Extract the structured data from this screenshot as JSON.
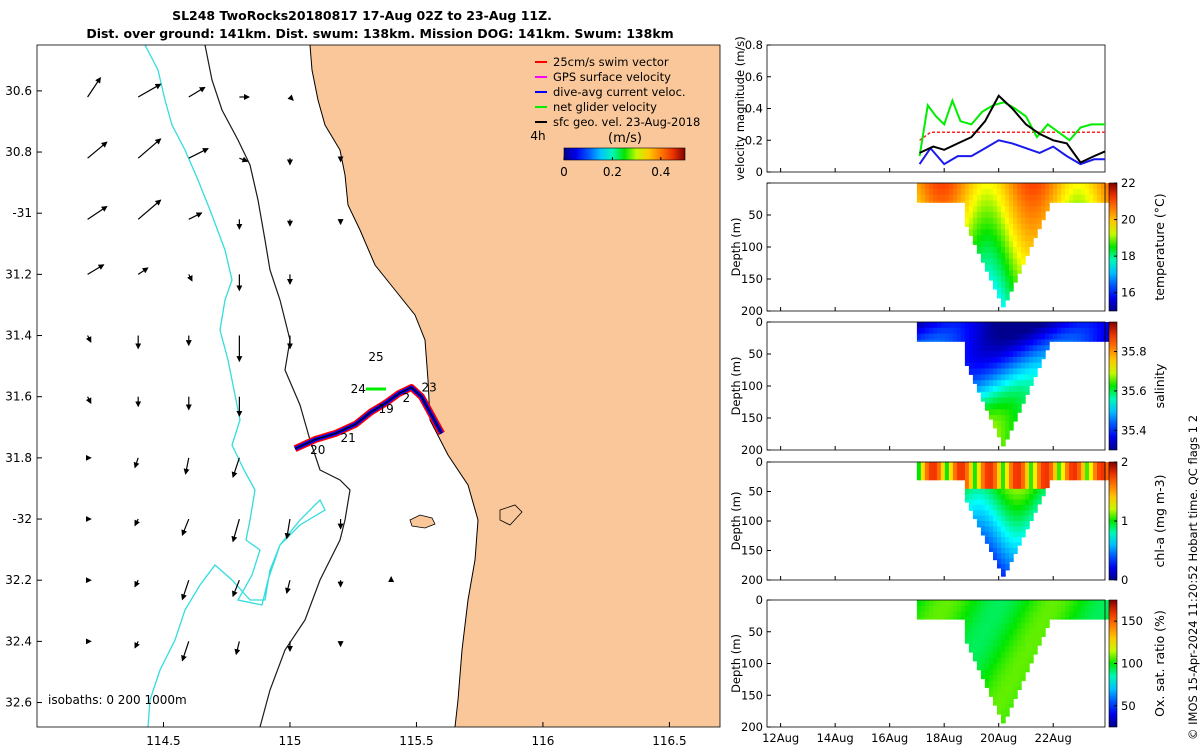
{
  "figure": {
    "title_line1": "SL248 TwoRocks20180817 17-Aug 02Z to 23-Aug 11Z.",
    "title_line2": "Dist. over ground: 141km. Dist. swum: 138km. Mission DOG: 141km. Swum: 138km",
    "credit": "© IMOS 15-Apr-2024 11:20:52 Hobart time. QC flags 1  2"
  },
  "colors": {
    "land": "#f9c79a",
    "isobath_0": "#000000",
    "isobath_200": "#1a1a1a",
    "isobath_1000": "#33dddd",
    "swim": "#ff0000",
    "gps": "#ff00ff",
    "diveavg": "#0000ff",
    "net": "#00ee00",
    "sfc": "#000000",
    "speed_red": "#ff2222",
    "speed_green": "#00ee00",
    "speed_blue": "#1a1aee",
    "speed_black": "#000000"
  },
  "chart_data": [
    {
      "id": "map",
      "type": "scatter",
      "title": "",
      "xlabel": "",
      "ylabel": "",
      "xlim": [
        114.0,
        116.7
      ],
      "ylim": [
        -32.68,
        -30.45
      ],
      "x_ticks": [
        114.5,
        115,
        115.5,
        116,
        116.5
      ],
      "x_tick_labels": [
        "114.5",
        "115",
        "115.5",
        "116",
        "116.5"
      ],
      "y_ticks": [
        -30.6,
        -30.8,
        -31.0,
        -31.2,
        -31.4,
        -31.6,
        -31.8,
        -32.0,
        -32.2,
        -32.4,
        -32.6
      ],
      "y_tick_labels": [
        "30.6",
        "30.8",
        "-31",
        "31.2",
        "31.4",
        "31.6",
        "31.8",
        "-32",
        "32.2",
        "32.4",
        "32.6"
      ],
      "legend": [
        {
          "key": "swim",
          "label": "25cm/s swim vector"
        },
        {
          "key": "gps",
          "label": "GPS surface velocity"
        },
        {
          "key": "diveavg",
          "label": "dive-avg current veloc."
        },
        {
          "key": "net",
          "label": "net glider velocity"
        },
        {
          "key": "sfc",
          "label": "sfc geo. vel. 23-Aug-2018"
        }
      ],
      "legend_position": "top-right",
      "interval_label": "4h",
      "colorbar": {
        "label": "(m/s)",
        "ticks": [
          0,
          0.2,
          0.4
        ],
        "tick_labels": [
          "0",
          "0.2",
          "0.4"
        ],
        "range": [
          0,
          0.5
        ]
      },
      "isobath_note": "isobaths: 0   200  1000m",
      "track": [
        [
          115.02,
          -31.77
        ],
        [
          115.1,
          -31.74
        ],
        [
          115.18,
          -31.72
        ],
        [
          115.26,
          -31.69
        ],
        [
          115.32,
          -31.65
        ],
        [
          115.38,
          -31.62
        ],
        [
          115.43,
          -31.59
        ],
        [
          115.48,
          -31.57
        ],
        [
          115.52,
          -31.6
        ],
        [
          115.56,
          -31.66
        ],
        [
          115.6,
          -31.72
        ]
      ],
      "track_labels": [
        {
          "text": "25",
          "lon": 115.34,
          "lat": -31.47
        },
        {
          "text": "24",
          "lon": 115.27,
          "lat": -31.575
        },
        {
          "text": "23",
          "lon": 115.55,
          "lat": -31.57
        },
        {
          "text": "2",
          "lon": 115.46,
          "lat": -31.605
        },
        {
          "text": "19",
          "lon": 115.38,
          "lat": -31.64
        },
        {
          "text": "21",
          "lon": 115.23,
          "lat": -31.735
        },
        {
          "text": "20",
          "lon": 115.11,
          "lat": -31.775
        }
      ],
      "sfc_vectors": [
        {
          "lon": 114.2,
          "lat": -30.62,
          "u": 0.08,
          "v": 0.12
        },
        {
          "lon": 114.4,
          "lat": -30.62,
          "u": 0.14,
          "v": 0.08
        },
        {
          "lon": 114.6,
          "lat": -30.62,
          "u": 0.1,
          "v": 0.06
        },
        {
          "lon": 114.8,
          "lat": -30.62,
          "u": 0.06,
          "v": 0.0
        },
        {
          "lon": 114.2,
          "lat": -30.82,
          "u": 0.12,
          "v": 0.1
        },
        {
          "lon": 114.4,
          "lat": -30.82,
          "u": 0.14,
          "v": 0.12
        },
        {
          "lon": 114.6,
          "lat": -30.82,
          "u": 0.12,
          "v": 0.06
        },
        {
          "lon": 114.8,
          "lat": -30.82,
          "u": 0.05,
          "v": -0.02
        },
        {
          "lon": 114.2,
          "lat": -31.02,
          "u": 0.12,
          "v": 0.08
        },
        {
          "lon": 114.4,
          "lat": -31.02,
          "u": 0.14,
          "v": 0.12
        },
        {
          "lon": 114.6,
          "lat": -31.02,
          "u": 0.08,
          "v": 0.04
        },
        {
          "lon": 114.8,
          "lat": -31.02,
          "u": 0.0,
          "v": -0.06
        },
        {
          "lon": 114.2,
          "lat": -31.2,
          "u": 0.1,
          "v": 0.06
        },
        {
          "lon": 114.4,
          "lat": -31.2,
          "u": 0.06,
          "v": 0.04
        },
        {
          "lon": 114.6,
          "lat": -31.2,
          "u": 0.02,
          "v": -0.04
        },
        {
          "lon": 114.8,
          "lat": -31.2,
          "u": 0.0,
          "v": -0.1
        },
        {
          "lon": 114.2,
          "lat": -31.4,
          "u": 0.02,
          "v": -0.04
        },
        {
          "lon": 114.4,
          "lat": -31.4,
          "u": 0.0,
          "v": -0.08
        },
        {
          "lon": 114.6,
          "lat": -31.4,
          "u": 0.0,
          "v": -0.06
        },
        {
          "lon": 114.8,
          "lat": -31.4,
          "u": 0.0,
          "v": -0.16
        },
        {
          "lon": 114.2,
          "lat": -31.6,
          "u": 0.02,
          "v": -0.04
        },
        {
          "lon": 114.4,
          "lat": -31.6,
          "u": 0.0,
          "v": -0.06
        },
        {
          "lon": 114.6,
          "lat": -31.6,
          "u": 0.0,
          "v": -0.08
        },
        {
          "lon": 114.8,
          "lat": -31.6,
          "u": 0.0,
          "v": -0.12
        },
        {
          "lon": 114.2,
          "lat": -31.8,
          "u": 0.02,
          "v": 0.0
        },
        {
          "lon": 114.4,
          "lat": -31.8,
          "u": -0.02,
          "v": -0.06
        },
        {
          "lon": 114.6,
          "lat": -31.8,
          "u": -0.02,
          "v": -0.1
        },
        {
          "lon": 114.8,
          "lat": -31.8,
          "u": -0.04,
          "v": -0.12
        },
        {
          "lon": 114.2,
          "lat": -32.0,
          "u": 0.02,
          "v": 0.0
        },
        {
          "lon": 114.4,
          "lat": -32.0,
          "u": -0.02,
          "v": -0.04
        },
        {
          "lon": 114.6,
          "lat": -32.0,
          "u": -0.04,
          "v": -0.1
        },
        {
          "lon": 114.8,
          "lat": -32.0,
          "u": -0.04,
          "v": -0.14
        },
        {
          "lon": 114.2,
          "lat": -32.2,
          "u": 0.02,
          "v": 0.0
        },
        {
          "lon": 114.4,
          "lat": -32.2,
          "u": -0.02,
          "v": -0.04
        },
        {
          "lon": 114.6,
          "lat": -32.2,
          "u": -0.04,
          "v": -0.12
        },
        {
          "lon": 114.8,
          "lat": -32.2,
          "u": -0.04,
          "v": -0.1
        },
        {
          "lon": 114.2,
          "lat": -32.4,
          "u": 0.02,
          "v": 0.0
        },
        {
          "lon": 114.4,
          "lat": -32.4,
          "u": -0.02,
          "v": -0.04
        },
        {
          "lon": 114.6,
          "lat": -32.4,
          "u": -0.04,
          "v": -0.12
        },
        {
          "lon": 114.8,
          "lat": -32.4,
          "u": -0.02,
          "v": -0.08
        },
        {
          "lon": 115.0,
          "lat": -30.62,
          "u": 0.02,
          "v": -0.02
        },
        {
          "lon": 115.0,
          "lat": -30.82,
          "u": 0.0,
          "v": -0.04
        },
        {
          "lon": 115.0,
          "lat": -31.02,
          "u": 0.0,
          "v": -0.04
        },
        {
          "lon": 115.0,
          "lat": -31.2,
          "u": 0.0,
          "v": -0.06
        },
        {
          "lon": 115.0,
          "lat": -31.4,
          "u": 0.0,
          "v": -0.08
        },
        {
          "lon": 115.0,
          "lat": -32.0,
          "u": -0.02,
          "v": -0.12
        },
        {
          "lon": 115.0,
          "lat": -32.2,
          "u": -0.02,
          "v": -0.08
        },
        {
          "lon": 115.0,
          "lat": -32.4,
          "u": 0.0,
          "v": -0.06
        },
        {
          "lon": 115.2,
          "lat": -30.82,
          "u": 0.0,
          "v": -0.02
        },
        {
          "lon": 115.2,
          "lat": -31.02,
          "u": 0.0,
          "v": -0.03
        },
        {
          "lon": 115.2,
          "lat": -32.0,
          "u": 0.0,
          "v": -0.06
        },
        {
          "lon": 115.2,
          "lat": -32.2,
          "u": 0.0,
          "v": -0.04
        },
        {
          "lon": 115.2,
          "lat": -32.4,
          "u": 0.0,
          "v": -0.03
        },
        {
          "lon": 115.4,
          "lat": -32.2,
          "u": 0.0,
          "v": 0.02
        }
      ]
    },
    {
      "id": "speed",
      "type": "line",
      "title": "",
      "xlabel": "",
      "ylabel": "velocity magnitude (m/s)",
      "xlim": [
        11.5,
        23.9
      ],
      "ylim": [
        0,
        0.8
      ],
      "y_ticks": [
        0,
        0.2,
        0.4,
        0.6,
        0.8
      ],
      "y_tick_labels": [
        "0",
        "0.2",
        "0.4",
        "0.6",
        "0.8"
      ],
      "series": [
        {
          "name": "swim",
          "color_key": "speed_red",
          "x": [
            17.1,
            17.5,
            18.0,
            19.0,
            20.0,
            21.0,
            22.0,
            23.0,
            23.9
          ],
          "y": [
            0.2,
            0.25,
            0.25,
            0.25,
            0.25,
            0.25,
            0.25,
            0.25,
            0.25
          ]
        },
        {
          "name": "net",
          "color_key": "speed_green",
          "x": [
            17.1,
            17.4,
            17.7,
            18.0,
            18.3,
            18.6,
            19.0,
            19.4,
            19.8,
            20.2,
            20.6,
            21.0,
            21.4,
            21.8,
            22.2,
            22.6,
            23.0,
            23.4,
            23.9
          ],
          "y": [
            0.1,
            0.42,
            0.35,
            0.3,
            0.45,
            0.32,
            0.3,
            0.38,
            0.42,
            0.44,
            0.4,
            0.35,
            0.22,
            0.3,
            0.25,
            0.2,
            0.28,
            0.3,
            0.3
          ]
        },
        {
          "name": "diveavg",
          "color_key": "speed_blue",
          "x": [
            17.1,
            17.5,
            18.0,
            18.5,
            19.0,
            19.5,
            20.0,
            20.5,
            21.0,
            21.5,
            22.0,
            22.5,
            23.0,
            23.5,
            23.9
          ],
          "y": [
            0.05,
            0.15,
            0.05,
            0.1,
            0.1,
            0.15,
            0.2,
            0.18,
            0.15,
            0.12,
            0.16,
            0.1,
            0.05,
            0.08,
            0.08
          ]
        },
        {
          "name": "sfc",
          "color_key": "speed_black",
          "x": [
            17.1,
            17.6,
            18.0,
            18.5,
            19.0,
            19.5,
            20.0,
            20.5,
            21.0,
            21.5,
            22.0,
            22.5,
            23.0,
            23.5,
            23.9
          ],
          "y": [
            0.12,
            0.16,
            0.14,
            0.18,
            0.22,
            0.32,
            0.48,
            0.4,
            0.3,
            0.24,
            0.2,
            0.18,
            0.06,
            0.1,
            0.13
          ]
        }
      ]
    },
    {
      "id": "temperature",
      "type": "heatmap",
      "title": "",
      "xlabel": "",
      "ylabel": "Depth (m)",
      "colorbar_label": "temperature (°C)",
      "clim": [
        15,
        22
      ],
      "cb_ticks": [
        16,
        18,
        20,
        22
      ],
      "cb_tick_labels": [
        "16",
        "18",
        "20",
        "22"
      ],
      "surface_range": [
        17.0,
        19.8
      ],
      "deep_range": [
        19.5,
        20.5
      ],
      "xlim": [
        11.5,
        23.9
      ],
      "ylim": [
        200,
        0
      ],
      "y_ticks": [
        0,
        50,
        100,
        150,
        200
      ],
      "y_tick_labels": [
        "",
        "50",
        "100",
        "150",
        "200"
      ]
    },
    {
      "id": "salinity",
      "type": "heatmap",
      "title": "",
      "xlabel": "",
      "ylabel": "Depth (m)",
      "colorbar_label": "salinity",
      "clim": [
        35.3,
        35.95
      ],
      "cb_ticks": [
        35.4,
        35.6,
        35.8
      ],
      "cb_tick_labels": [
        "35.4",
        "35.6",
        "35.8"
      ],
      "surface_range": [
        17.0,
        19.8
      ],
      "deep_range": [
        19.5,
        20.5
      ],
      "xlim": [
        11.5,
        23.9
      ],
      "ylim": [
        200,
        0
      ],
      "y_ticks": [
        0,
        50,
        100,
        150,
        200
      ],
      "y_tick_labels": [
        "0",
        "50",
        "100",
        "150",
        "200"
      ]
    },
    {
      "id": "chla",
      "type": "heatmap",
      "title": "",
      "xlabel": "",
      "ylabel": "Depth (m)",
      "colorbar_label": "chl-a (mg m-3)",
      "clim": [
        0,
        2
      ],
      "cb_ticks": [
        0,
        1,
        2
      ],
      "cb_tick_labels": [
        "0",
        "1",
        "2"
      ],
      "surface_range": [
        17.0,
        19.8
      ],
      "deep_range": [
        19.5,
        20.5
      ],
      "xlim": [
        11.5,
        23.9
      ],
      "ylim": [
        200,
        0
      ],
      "y_ticks": [
        0,
        50,
        100,
        150,
        200
      ],
      "y_tick_labels": [
        "0",
        "50",
        "100",
        "150",
        "200"
      ]
    },
    {
      "id": "oxygen",
      "type": "heatmap",
      "title": "",
      "xlabel": "",
      "ylabel": "Depth (m)",
      "colorbar_label": "Ox. sat. ratio (%)",
      "clim": [
        25,
        175
      ],
      "cb_ticks": [
        50,
        100,
        150
      ],
      "cb_tick_labels": [
        "50",
        "100",
        "150"
      ],
      "surface_range": [
        17.0,
        19.8
      ],
      "deep_range": [
        19.5,
        20.5
      ],
      "xlim": [
        11.5,
        23.9
      ],
      "ylim": [
        200,
        0
      ],
      "y_ticks": [
        0,
        50,
        100,
        150,
        200
      ],
      "y_tick_labels": [
        "0",
        "50",
        "100",
        "150",
        "200"
      ],
      "x_ticks": [
        12,
        14,
        16,
        18,
        20,
        22
      ],
      "x_tick_labels": [
        "12Aug",
        "14Aug",
        "16Aug",
        "18Aug",
        "20Aug",
        "22Aug"
      ]
    }
  ]
}
